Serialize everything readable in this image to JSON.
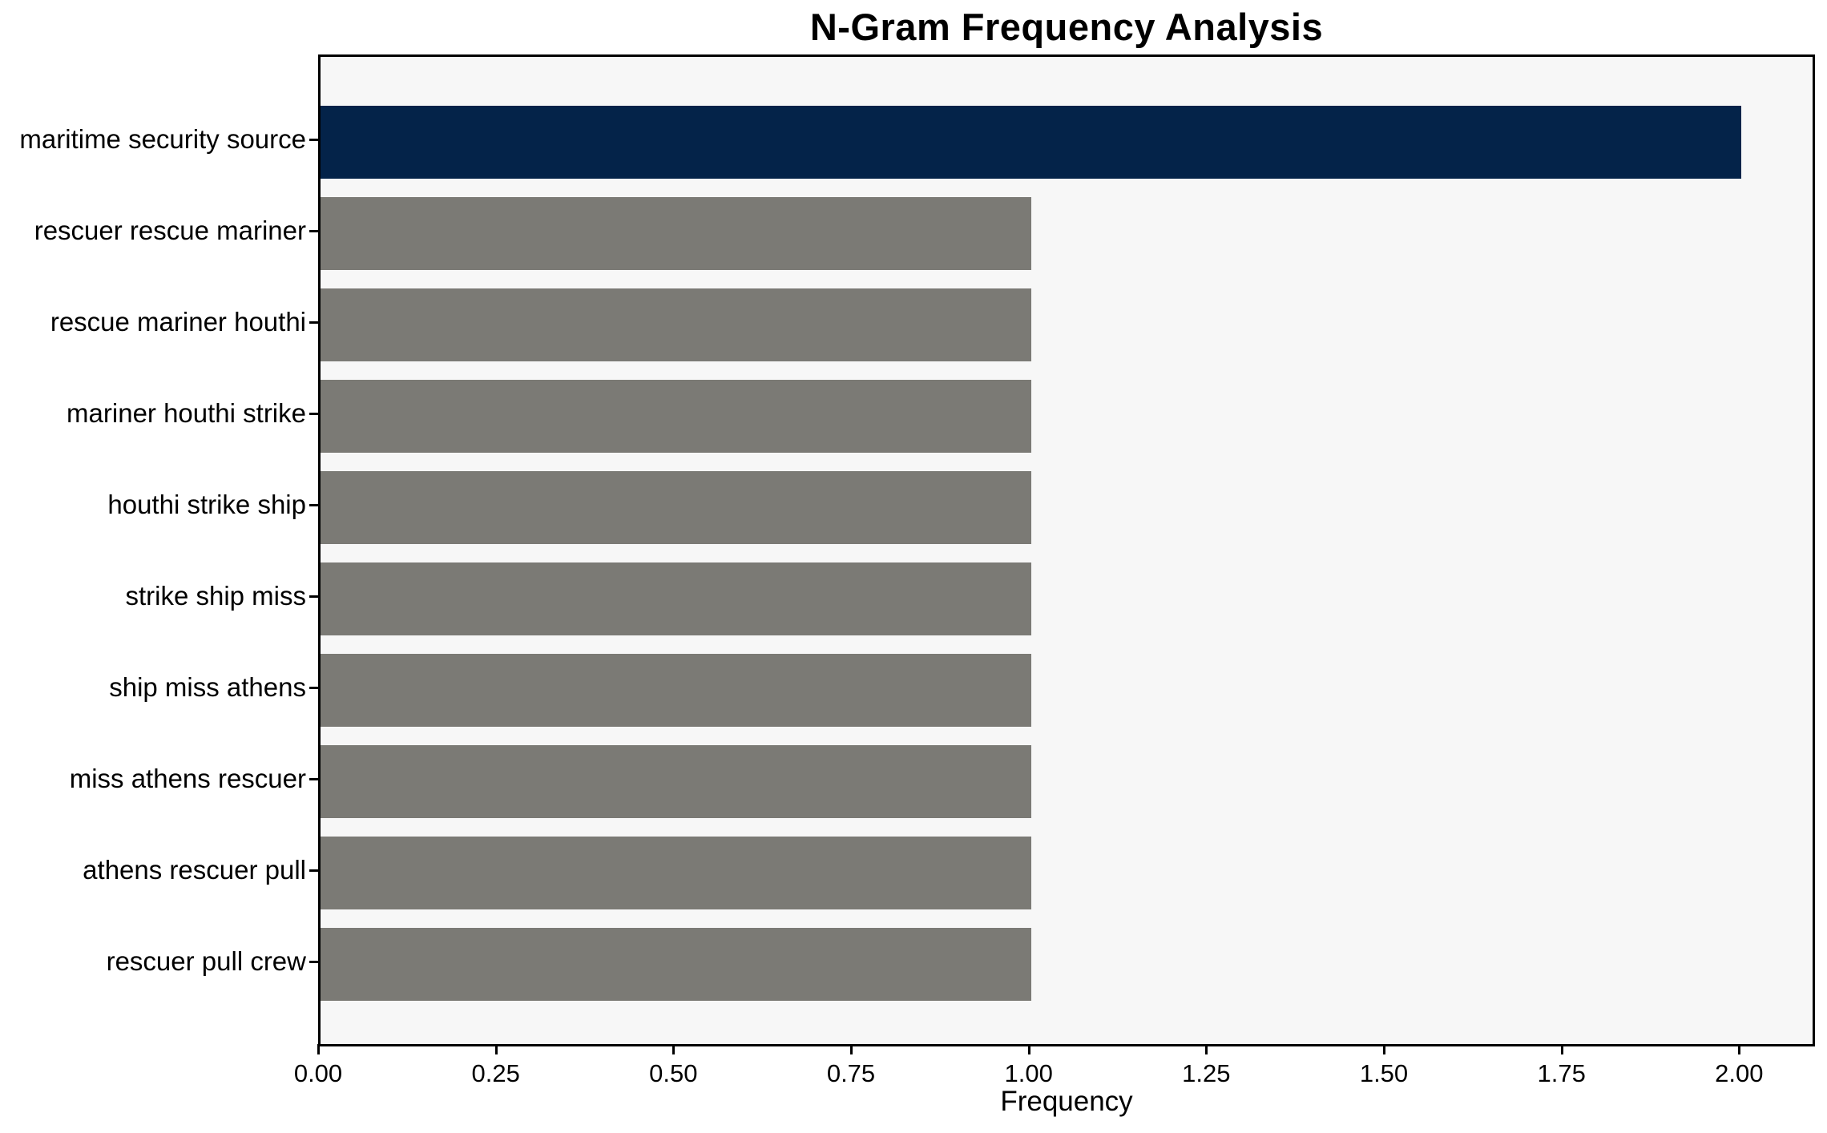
{
  "chart_data": {
    "type": "bar",
    "orientation": "horizontal",
    "title": "N-Gram Frequency Analysis",
    "xlabel": "Frequency",
    "ylabel": "",
    "categories": [
      "maritime security source",
      "rescuer rescue mariner",
      "rescue mariner houthi",
      "mariner houthi strike",
      "houthi strike ship",
      "strike ship miss",
      "ship miss athens",
      "miss athens rescuer",
      "athens rescuer pull",
      "rescuer pull crew"
    ],
    "values": [
      2,
      1,
      1,
      1,
      1,
      1,
      1,
      1,
      1,
      1
    ],
    "bar_colors": [
      "#042349",
      "#7b7a75",
      "#7b7a75",
      "#7b7a75",
      "#7b7a75",
      "#7b7a75",
      "#7b7a75",
      "#7b7a75",
      "#7b7a75",
      "#7b7a75"
    ],
    "x_ticks": [
      "0.00",
      "0.25",
      "0.50",
      "0.75",
      "1.00",
      "1.25",
      "1.50",
      "1.75",
      "2.00"
    ],
    "x_tick_values": [
      0,
      0.25,
      0.5,
      0.75,
      1.0,
      1.25,
      1.5,
      1.75,
      2.0
    ],
    "xlim": [
      0,
      2.1
    ],
    "grid": false,
    "legend": "none",
    "colors": {
      "highlight_bar": "#042349",
      "default_bar": "#7b7a75",
      "plot_background": "#f7f7f7",
      "figure_background": "#ffffff",
      "axis": "#000000",
      "text": "#000000"
    }
  }
}
